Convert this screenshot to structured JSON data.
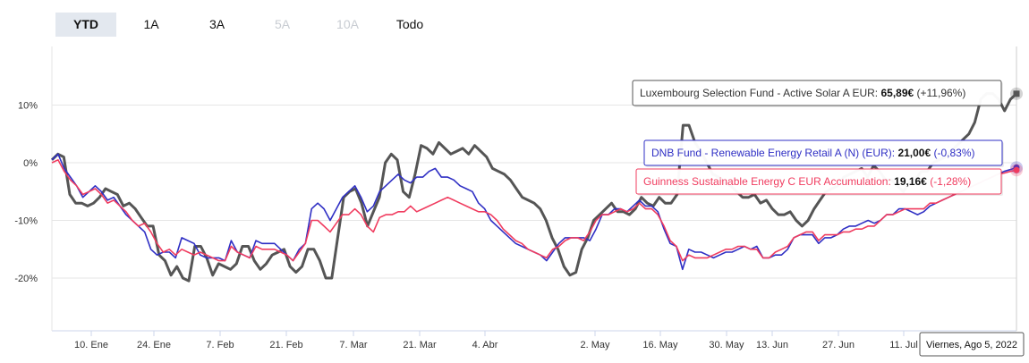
{
  "range_selector": {
    "buttons": [
      {
        "label": "YTD",
        "state": "active"
      },
      {
        "label": "1A",
        "state": "enabled"
      },
      {
        "label": "3A",
        "state": "enabled"
      },
      {
        "label": "5A",
        "state": "disabled"
      },
      {
        "label": "10A",
        "state": "disabled"
      },
      {
        "label": "Todo",
        "state": "enabled"
      }
    ]
  },
  "chart_data": {
    "type": "line",
    "title": "",
    "xlabel": "",
    "ylabel": "",
    "x_tick_labels": [
      "10. Ene",
      "24. Ene",
      "7. Feb",
      "21. Feb",
      "7. Mar",
      "21. Mar",
      "4. Abr",
      "2. May",
      "16. May",
      "30. May",
      "13. Jun",
      "27. Jun",
      "11. Jul"
    ],
    "y_tick_labels": [
      "10%",
      "0%",
      "-10%",
      "-20%"
    ],
    "y_ticks": [
      10,
      0,
      -10,
      -20
    ],
    "ylim": [
      -30,
      18
    ],
    "x_axis": "dates 2022-01-01 to 2022-08-05",
    "grid": "horizontal",
    "crosshair_label": "Viernes, Ago 5, 2022",
    "series": [
      {
        "name": "Luxembourg Selection Fund - Active Solar A EUR",
        "color": "#555555",
        "tooltip": {
          "value": "65,89€",
          "change": "(+11,96%)"
        },
        "values": [
          0.5,
          1.5,
          1,
          -5.5,
          -7,
          -7,
          -7.5,
          -7,
          -6,
          -4.5,
          -5,
          -5.5,
          -7.5,
          -7,
          -8,
          -9.5,
          -11,
          -11,
          -16,
          -17,
          -19.5,
          -18,
          -20,
          -20.5,
          -14.5,
          -14.5,
          -16.5,
          -19.5,
          -17.5,
          -18,
          -18.5,
          -17.5,
          -14.5,
          -14.5,
          -17,
          -18.5,
          -17.5,
          -16,
          -15.5,
          -15,
          -18,
          -19,
          -18,
          -15,
          -15,
          -17,
          -20,
          -20,
          -13,
          -6,
          -5,
          -4.5,
          -7,
          -11,
          -8.5,
          -6,
          0,
          1.5,
          0.5,
          -5,
          -6,
          -2,
          3,
          2.5,
          1.5,
          3.5,
          2.5,
          1.5,
          2,
          2.5,
          1.5,
          3,
          2,
          1,
          -1,
          -1.5,
          -2,
          -3,
          -4.5,
          -6,
          -6.5,
          -7,
          -8,
          -10,
          -13,
          -15,
          -18,
          -19.5,
          -19,
          -15,
          -13,
          -10,
          -9,
          -8,
          -7,
          -8.5,
          -8.5,
          -9,
          -8,
          -6,
          -7,
          -7.5,
          -6,
          -7,
          -7,
          -5.5,
          6.5,
          6.5,
          3.5,
          2,
          0,
          -2,
          -2.5,
          -3.5,
          -4,
          -5,
          -6,
          -6,
          -5.5,
          -7,
          -6.5,
          -8,
          -9,
          -9,
          -8.5,
          -10,
          -11,
          -10,
          -8,
          -6.5,
          -5,
          -4.5,
          -4,
          -2.5,
          -2,
          -1.5,
          -1,
          -2.5,
          -0.5,
          -1.5,
          -3,
          -3,
          -4,
          -5,
          -3.5,
          -3,
          -1.5,
          -1.5,
          0,
          0.5,
          1,
          2,
          3,
          4,
          5,
          7,
          11,
          12,
          12,
          11,
          9,
          11,
          11.96
        ]
      },
      {
        "name": "DNB Fund - Renewable Energy Retail A (N) (EUR)",
        "color": "#2f2fc4",
        "tooltip": {
          "value": "21,00€",
          "change": "(-0,83%)"
        },
        "values": [
          0.5,
          1.5,
          -1,
          -2.5,
          -4,
          -6,
          -5,
          -4,
          -5,
          -6.5,
          -6,
          -7.5,
          -9,
          -10,
          -11,
          -12,
          -15,
          -16,
          -15.5,
          -15.5,
          -16.5,
          -13,
          -13.5,
          -14,
          -16,
          -16.5,
          -16.5,
          -16.5,
          -17,
          -13.5,
          -15.5,
          -16,
          -16.5,
          -13.5,
          -14,
          -14,
          -14,
          -15,
          -16,
          -17,
          -15,
          -14,
          -8,
          -7,
          -8,
          -10,
          -8,
          -6,
          -5,
          -4,
          -6,
          -8.5,
          -7.5,
          -5,
          -4,
          -3,
          -2,
          -3,
          -3.5,
          -2.5,
          -2.5,
          -1.5,
          -1,
          -2.5,
          -2.5,
          -3,
          -4,
          -4.5,
          -5,
          -7,
          -8,
          -10,
          -11,
          -12,
          -13,
          -14,
          -14.5,
          -15,
          -15.5,
          -16,
          -17,
          -15.5,
          -14,
          -13,
          -13,
          -13,
          -13,
          -13.5,
          -11.5,
          -9,
          -9,
          -8,
          -8,
          -8.5,
          -7.5,
          -6.5,
          -7.5,
          -7.5,
          -8.5,
          -11.5,
          -14,
          -14.5,
          -18.5,
          -15,
          -15.5,
          -15.5,
          -16,
          -16.5,
          -16,
          -15.5,
          -15.5,
          -15,
          -14.5,
          -15,
          -14.5,
          -16.5,
          -16.5,
          -16,
          -16,
          -15,
          -13,
          -12.5,
          -12.5,
          -12.5,
          -14,
          -13,
          -13,
          -12.5,
          -11.5,
          -11,
          -11,
          -10.5,
          -10,
          -10.5,
          -10,
          -9,
          -9,
          -8,
          -8,
          -8.5,
          -9,
          -8.5,
          -7.5,
          -7,
          -6.5,
          -6,
          -5.5,
          -5,
          -4.5,
          -4,
          -3.5,
          -3,
          -2.5,
          -2,
          -1.5,
          -1.2,
          -0.83
        ]
      },
      {
        "name": "Guinness Sustainable Energy C EUR Accumulation",
        "color": "#f03c5f",
        "tooltip": {
          "value": "19,16€",
          "change": "(-1,28%)"
        },
        "values": [
          0,
          0.5,
          -1.5,
          -3,
          -4,
          -5.5,
          -5,
          -4.5,
          -5.5,
          -7,
          -6.5,
          -7.5,
          -8.5,
          -10,
          -11,
          -10.5,
          -12,
          -14,
          -15.5,
          -15,
          -16,
          -15,
          -15.5,
          -16,
          -15.5,
          -16,
          -16.5,
          -17,
          -17,
          -14.5,
          -15.5,
          -16,
          -16.5,
          -14.5,
          -15,
          -15,
          -15,
          -15.5,
          -16,
          -17,
          -15.5,
          -14,
          -10,
          -10,
          -11,
          -12,
          -10.5,
          -9,
          -9,
          -8,
          -9,
          -11,
          -12,
          -9.5,
          -9,
          -9,
          -8.5,
          -8.5,
          -7.5,
          -8.5,
          -8,
          -7.5,
          -7,
          -6.5,
          -6,
          -6.5,
          -7,
          -7.5,
          -8,
          -8.5,
          -8.5,
          -9,
          -10,
          -11.5,
          -12.5,
          -13.5,
          -14,
          -15,
          -15.5,
          -16,
          -16.5,
          -15,
          -14.5,
          -13.5,
          -13,
          -13,
          -13.5,
          -12,
          -10,
          -9,
          -9,
          -8.5,
          -8,
          -8.5,
          -8,
          -7,
          -8,
          -8,
          -9,
          -11,
          -13.5,
          -14.5,
          -17,
          -16,
          -16.5,
          -16.5,
          -16.5,
          -16,
          -15.5,
          -15,
          -15,
          -14.5,
          -14.5,
          -15,
          -15,
          -16.5,
          -16.5,
          -15.5,
          -15,
          -14.5,
          -13,
          -12.5,
          -12,
          -12,
          -13.5,
          -12.5,
          -12.5,
          -12.5,
          -12,
          -12,
          -11.5,
          -11.5,
          -11,
          -11,
          -10,
          -9,
          -9,
          -8.5,
          -8,
          -8,
          -8,
          -8,
          -7,
          -7,
          -6.5,
          -6,
          -5.5,
          -5,
          -4.5,
          -4,
          -3.5,
          -3,
          -2.5,
          -2,
          -1.8,
          -1.5,
          -1.28
        ]
      }
    ]
  }
}
